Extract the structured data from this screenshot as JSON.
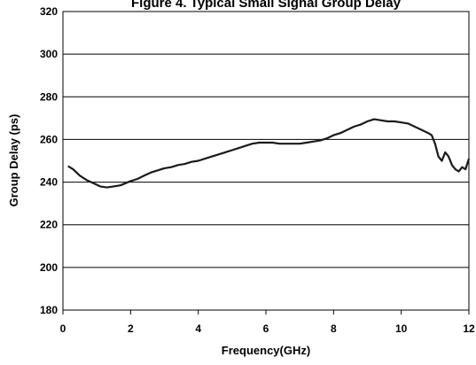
{
  "chart_data": {
    "type": "line",
    "title": "Figure 4. Typical Small Signal Group Delay",
    "xlabel": "Frequency(GHz)",
    "ylabel": "Group Delay (ps)",
    "xlim": [
      0,
      12
    ],
    "ylim": [
      180,
      320
    ],
    "xticks": [
      "0",
      "2",
      "4",
      "6",
      "8",
      "10",
      "12"
    ],
    "yticks": [
      "180",
      "200",
      "220",
      "240",
      "260",
      "280",
      "300",
      "320"
    ],
    "grid": "horizontal",
    "legend": "none",
    "series": [
      {
        "color": "#1a1a1a",
        "x": [
          0.15,
          0.3,
          0.5,
          0.7,
          0.9,
          1.1,
          1.3,
          1.5,
          1.7,
          1.85,
          2.0,
          2.2,
          2.4,
          2.6,
          2.8,
          3.0,
          3.2,
          3.4,
          3.6,
          3.8,
          4.0,
          4.2,
          4.4,
          4.6,
          4.8,
          5.0,
          5.2,
          5.4,
          5.6,
          5.8,
          6.0,
          6.2,
          6.4,
          6.6,
          6.8,
          7.0,
          7.2,
          7.4,
          7.6,
          7.8,
          8.0,
          8.2,
          8.4,
          8.6,
          8.8,
          9.0,
          9.2,
          9.4,
          9.6,
          9.8,
          10.0,
          10.2,
          10.4,
          10.6,
          10.8,
          10.9,
          11.0,
          11.1,
          11.2,
          11.3,
          11.4,
          11.5,
          11.6,
          11.7,
          11.8,
          11.9,
          12.0
        ],
        "y": [
          247.5,
          246,
          243,
          241,
          239.5,
          238,
          237.5,
          238,
          238.5,
          239.5,
          240.5,
          241.5,
          243,
          244.5,
          245.5,
          246.5,
          247,
          248,
          248.5,
          249.5,
          250,
          251,
          252,
          253,
          254,
          255,
          256,
          257,
          258,
          258.5,
          258.5,
          258.5,
          258,
          258,
          258,
          258,
          258.5,
          259,
          259.5,
          260.5,
          262,
          263,
          264.5,
          266,
          267,
          268.5,
          269.5,
          269,
          268.5,
          268.5,
          268,
          267.5,
          266,
          264.5,
          263,
          262,
          258,
          252,
          250,
          254,
          252,
          248,
          246,
          245,
          247,
          246,
          251
        ]
      }
    ]
  }
}
